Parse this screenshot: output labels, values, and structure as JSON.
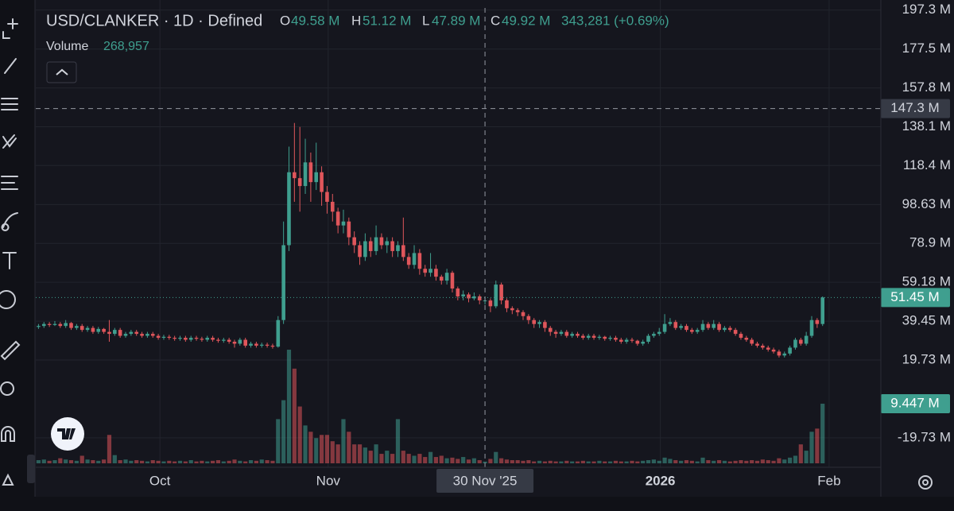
{
  "chart_data": {
    "type": "candlestick",
    "title": "USD/CLANKER · 1D · Defined",
    "ohlc_legend": [
      {
        "key": "O",
        "text": "49.58 M"
      },
      {
        "key": "H",
        "text": "51.12 M"
      },
      {
        "key": "L",
        "text": "47.89 M"
      },
      {
        "key": "C",
        "text": "49.92 M"
      }
    ],
    "change": "343,281 (+0.69%)",
    "volume_legend": "268,957",
    "colors": {
      "up": "#3f9f8f",
      "down": "#e0565b"
    },
    "ohlc": {
      "open": [
        36.5,
        37,
        38,
        37.5,
        38,
        37,
        38.5,
        36,
        37,
        35,
        36,
        34,
        35.5,
        34,
        33,
        35,
        32,
        33,
        34,
        33,
        32,
        33,
        32,
        31,
        31.5,
        31,
        30.5,
        31,
        30,
        31,
        30.5,
        30,
        31,
        30,
        29.5,
        30,
        29,
        28,
        30,
        27,
        28,
        27,
        27.5,
        27,
        26.5,
        40,
        78,
        115,
        112,
        108,
        120,
        110,
        115,
        105,
        100,
        95,
        88,
        90,
        82,
        78,
        72,
        80,
        75,
        82,
        78,
        80,
        75,
        78,
        72,
        68,
        74,
        66,
        64,
        66,
        62,
        60,
        64,
        56,
        52,
        53,
        51,
        52,
        49.58,
        49.92,
        47,
        58,
        50,
        46,
        45,
        44,
        42,
        40,
        38,
        39,
        36,
        34,
        33,
        34,
        32,
        33,
        32,
        31,
        32,
        31,
        31.5,
        30.5,
        31,
        30,
        29,
        30,
        29.5,
        28,
        29,
        32,
        33,
        34,
        38,
        39,
        36,
        37,
        35,
        34,
        35,
        38,
        36,
        38,
        35,
        36,
        35,
        33,
        31,
        30,
        28,
        27,
        26,
        25,
        24,
        22,
        23,
        26,
        30,
        28,
        32,
        40,
        38
      ],
      "high": [
        38,
        39,
        39,
        39.5,
        39,
        40,
        39,
        38,
        38,
        37,
        37,
        36.5,
        36,
        40,
        36,
        36,
        34,
        35,
        35,
        34,
        34,
        34,
        33,
        32.5,
        32.5,
        32,
        32,
        32,
        32,
        32,
        31.5,
        32,
        32,
        31,
        31,
        31,
        30,
        31,
        31,
        29,
        29,
        28.5,
        28.5,
        28,
        42,
        90,
        128,
        140,
        138,
        132,
        125,
        130,
        118,
        108,
        104,
        97,
        96,
        92,
        85,
        80,
        84,
        82,
        88,
        84,
        82,
        82,
        80,
        92,
        74,
        78,
        76,
        68,
        74,
        68,
        63,
        66,
        65,
        57,
        55,
        54,
        54,
        53,
        51.12,
        51,
        60,
        59,
        51,
        47,
        46,
        45,
        43,
        41,
        40,
        40,
        37,
        35,
        35,
        35,
        34,
        34,
        33,
        33,
        33,
        32.5,
        32,
        32,
        32,
        31,
        31,
        31,
        30,
        30,
        33,
        34,
        36,
        43,
        41,
        40,
        38,
        38,
        36,
        36,
        40,
        39,
        40,
        39,
        37,
        37,
        36,
        34,
        32,
        31,
        29,
        28,
        27,
        26,
        25,
        24,
        27,
        31,
        31,
        34,
        42,
        41,
        52
      ],
      "low": [
        35.5,
        36,
        36.5,
        37,
        36,
        36,
        35,
        35,
        34,
        34,
        33,
        33,
        33,
        29,
        32,
        31,
        31,
        32,
        32,
        31,
        31,
        31,
        30,
        30,
        30,
        29.5,
        29.5,
        29,
        29,
        29.5,
        29,
        29,
        29,
        28.5,
        28.5,
        28,
        26,
        27,
        26,
        26,
        26,
        26,
        26,
        25.5,
        26,
        38,
        75,
        100,
        95,
        104,
        100,
        106,
        98,
        94,
        90,
        84,
        84,
        78,
        74,
        68,
        70,
        72,
        73,
        76,
        74,
        72,
        72,
        70,
        66,
        66,
        63,
        62,
        62,
        60,
        58,
        58,
        54,
        50,
        50,
        49,
        50,
        48,
        47.89,
        44,
        46,
        48,
        44,
        43,
        42,
        40,
        38,
        36,
        36,
        34,
        32,
        31,
        32,
        31,
        31,
        31,
        30,
        30,
        30,
        30,
        29.5,
        29.5,
        29,
        28,
        28,
        28.5,
        27,
        27,
        28,
        31,
        32,
        33,
        37,
        35,
        35,
        34,
        33,
        33,
        34,
        35,
        35,
        34,
        34,
        34,
        32,
        30,
        29,
        27,
        26,
        25,
        24,
        23,
        21,
        21,
        22,
        25,
        27,
        27,
        31,
        36,
        37
      ],
      "close": [
        37,
        38,
        37.5,
        38,
        37,
        38.5,
        36,
        37,
        35,
        36,
        34,
        35.5,
        34,
        33,
        35,
        32,
        33,
        34,
        33,
        32,
        33,
        32,
        31,
        31.5,
        31,
        30.5,
        31,
        30,
        31,
        30.5,
        30,
        31,
        30,
        29.5,
        30,
        29,
        28,
        30,
        27,
        28,
        27,
        27.5,
        27,
        26.5,
        40,
        78,
        115,
        112,
        108,
        120,
        110,
        115,
        105,
        100,
        95,
        88,
        90,
        82,
        78,
        72,
        80,
        75,
        82,
        78,
        80,
        75,
        78,
        72,
        68,
        74,
        66,
        64,
        66,
        62,
        60,
        64,
        56,
        52,
        53,
        51,
        52,
        50,
        49.92,
        47,
        58,
        50,
        46,
        45,
        44,
        42,
        40,
        38,
        39,
        36,
        34,
        33,
        34,
        32,
        33,
        32,
        31,
        32,
        31,
        31.5,
        30.5,
        31,
        30,
        29,
        30,
        29.5,
        28,
        29,
        32,
        33,
        34,
        38,
        39,
        36,
        37,
        35,
        34,
        35,
        38,
        36,
        38,
        35,
        36,
        35,
        33,
        31,
        30,
        28,
        27,
        26,
        25,
        24,
        22,
        23,
        26,
        30,
        28,
        32,
        40,
        38,
        51.45
      ]
    },
    "volume": {
      "name": "Volume",
      "axis": "y2",
      "values": [
        0.5,
        0.6,
        0.4,
        0.5,
        0.8,
        0.6,
        0.5,
        0.4,
        1.2,
        0.6,
        0.5,
        0.4,
        0.6,
        4.5,
        1.3,
        0.5,
        0.6,
        0.4,
        0.5,
        0.4,
        0.3,
        0.5,
        0.4,
        0.3,
        0.4,
        0.3,
        0.4,
        0.3,
        0.5,
        0.3,
        0.4,
        0.3,
        0.4,
        0.5,
        0.3,
        0.4,
        0.6,
        0.4,
        0.3,
        0.5,
        0.4,
        0.6,
        0.5,
        0.4,
        7,
        10,
        18,
        15,
        9,
        6,
        5,
        4,
        4.5,
        4.5,
        3.5,
        3,
        7,
        5,
        3,
        3,
        2.5,
        2,
        3,
        1.5,
        2,
        1.5,
        7,
        2,
        1.5,
        1.2,
        1.5,
        1,
        1.8,
        1,
        1.2,
        0.8,
        0.9,
        0.7,
        1,
        0.6,
        0.8,
        0.5,
        0.269,
        0.7,
        1.8,
        0.8,
        0.6,
        0.5,
        0.5,
        0.4,
        0.5,
        0.3,
        0.4,
        0.3,
        0.4,
        0.3,
        0.3,
        0.4,
        0.3,
        0.3,
        0.4,
        0.3,
        0.3,
        0.4,
        0.3,
        0.3,
        0.4,
        0.3,
        0.3,
        0.4,
        0.3,
        0.4,
        0.5,
        0.6,
        0.4,
        0.9,
        0.7,
        0.5,
        0.4,
        0.5,
        0.4,
        0.3,
        0.9,
        0.5,
        0.4,
        0.5,
        0.4,
        0.3,
        0.4,
        0.5,
        0.4,
        0.5,
        0.4,
        0.6,
        0.5,
        0.4,
        0.8,
        0.6,
        0.9,
        1.2,
        3,
        2,
        5,
        5.5,
        9.447
      ]
    },
    "xlim": [
      0,
      155.2
    ],
    "xticks": [
      {
        "value": 22.8,
        "label": "Oct"
      },
      {
        "value": 53.7,
        "label": "Nov"
      },
      {
        "value": 114.7,
        "label": "2026"
      },
      {
        "value": 145.7,
        "label": "Feb"
      }
    ],
    "ylim": [
      -32.7,
      202.4
    ],
    "yticks": [
      {
        "value": 197.3,
        "label": "197.3 M"
      },
      {
        "value": 177.5,
        "label": "177.5 M"
      },
      {
        "value": 157.8,
        "label": "157.8 M"
      },
      {
        "value": 138.1,
        "label": "138.1 M"
      },
      {
        "value": 118.4,
        "label": "118.4 M"
      },
      {
        "value": 98.63,
        "label": "98.63 M"
      },
      {
        "value": 78.9,
        "label": "78.9 M"
      },
      {
        "value": 59.18,
        "label": "59.18 M"
      },
      {
        "value": 39.45,
        "label": "39.45 M"
      },
      {
        "value": 19.73,
        "label": "19.73 M"
      },
      {
        "value": -19.73,
        "label": "-19.73 M"
      }
    ],
    "y2lim": [
      0,
      73.4
    ],
    "grid": true,
    "last_price": {
      "value": 51.45,
      "label": "51.45 M"
    },
    "last_volume": {
      "value": 9.447,
      "label": "9.447 M"
    },
    "crosshair": {
      "x": {
        "value": 82.5,
        "label": "30 Nov '25"
      },
      "y": {
        "value": 147.3,
        "label": "147.3 M"
      }
    }
  }
}
